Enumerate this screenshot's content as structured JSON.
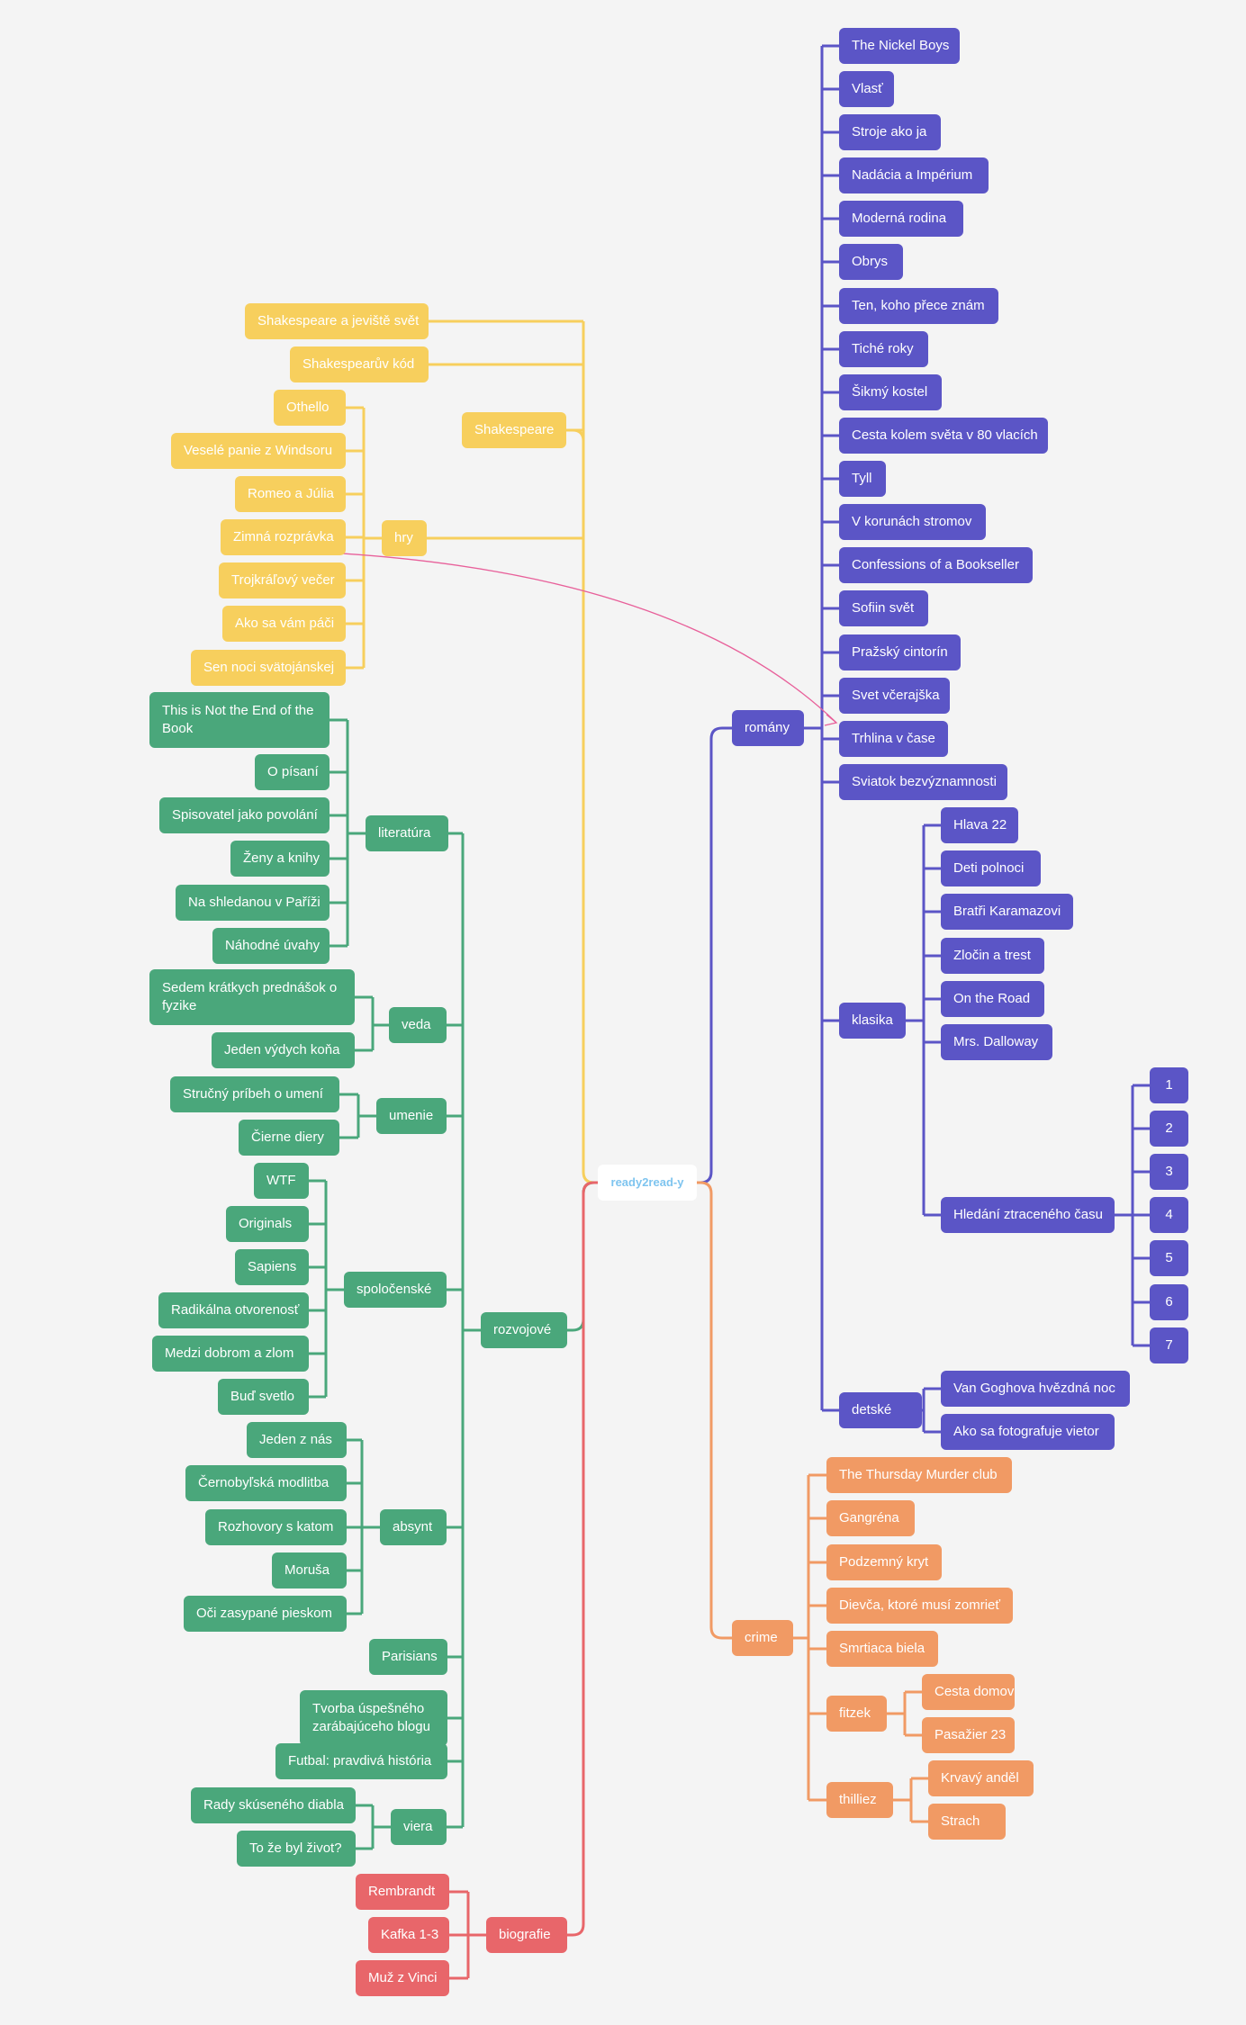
{
  "colors": {
    "yellow": "#f7cf5d",
    "green": "#4aa77b",
    "purple": "#5b55c6",
    "orange": "#f19a64",
    "red": "#e8666a",
    "root_text": "#7ec4ef",
    "arrow": "#e8609a"
  },
  "root": {
    "label": "ready2read-y"
  },
  "branches": [
    {
      "label": "Shakespeare",
      "color": "yellow",
      "children": [
        {
          "label": "Shakespeare a jeviště svět"
        },
        {
          "label": "Shakespearův kód"
        },
        {
          "label": "hry",
          "children": [
            {
              "label": "Othello"
            },
            {
              "label": "Veselé panie z Windsoru"
            },
            {
              "label": "Romeo a Júlia"
            },
            {
              "label": "Zimná rozprávka"
            },
            {
              "label": "Trojkráľový večer"
            },
            {
              "label": "Ako sa vám páči"
            },
            {
              "label": "Sen noci svätojánskej"
            }
          ]
        }
      ]
    },
    {
      "label": "rozvojové",
      "color": "green",
      "children": [
        {
          "label": "literatúra",
          "children": [
            {
              "label": "This is Not the End of the Book"
            },
            {
              "label": "O písaní"
            },
            {
              "label": "Spisovatel jako povolání"
            },
            {
              "label": "Ženy a knihy"
            },
            {
              "label": "Na shledanou v Paříži"
            },
            {
              "label": "Náhodné úvahy"
            }
          ]
        },
        {
          "label": "veda",
          "children": [
            {
              "label": "Sedem krátkych prednášok o fyzike"
            },
            {
              "label": "Jeden výdych koňa"
            }
          ]
        },
        {
          "label": "umenie",
          "children": [
            {
              "label": "Stručný príbeh o umení"
            },
            {
              "label": "Čierne diery"
            }
          ]
        },
        {
          "label": "spoločenské",
          "children": [
            {
              "label": "WTF"
            },
            {
              "label": "Originals"
            },
            {
              "label": "Sapiens"
            },
            {
              "label": "Radikálna otvorenosť"
            },
            {
              "label": "Medzi dobrom a zlom"
            },
            {
              "label": "Buď svetlo"
            }
          ]
        },
        {
          "label": "absynt",
          "children": [
            {
              "label": "Jeden z nás"
            },
            {
              "label": "Černobyľská modlitba"
            },
            {
              "label": "Rozhovory s katom"
            },
            {
              "label": "Moruša"
            },
            {
              "label": "Oči zasypané pieskom"
            }
          ]
        },
        {
          "label": "Parisians"
        },
        {
          "label": "Tvorba úspešného zarábajúceho blogu"
        },
        {
          "label": "Futbal: pravdivá história"
        },
        {
          "label": "viera",
          "children": [
            {
              "label": "Rady skúseného diabla"
            },
            {
              "label": "To že byl život?"
            }
          ]
        }
      ]
    },
    {
      "label": "biografie",
      "color": "red",
      "children": [
        {
          "label": "Rembrandt"
        },
        {
          "label": "Kafka 1-3"
        },
        {
          "label": "Muž z Vinci"
        }
      ]
    },
    {
      "label": "romány",
      "color": "purple",
      "children": [
        {
          "label": "The Nickel Boys"
        },
        {
          "label": "Vlasť"
        },
        {
          "label": "Stroje ako ja"
        },
        {
          "label": "Nadácia a Impérium"
        },
        {
          "label": "Moderná rodina"
        },
        {
          "label": "Obrys"
        },
        {
          "label": "Ten, koho přece znám"
        },
        {
          "label": "Tiché roky"
        },
        {
          "label": "Šikmý kostel"
        },
        {
          "label": "Cesta kolem světa v 80 vlacích"
        },
        {
          "label": "Tyll"
        },
        {
          "label": "V korunách stromov"
        },
        {
          "label": "Confessions of a Bookseller"
        },
        {
          "label": "Sofiin svět"
        },
        {
          "label": "Pražský cintorín"
        },
        {
          "label": "Svet včerajška"
        },
        {
          "label": "Trhlina v čase"
        },
        {
          "label": "Sviatok bezvýznamnosti"
        },
        {
          "label": "klasika",
          "children": [
            {
              "label": "Hlava 22"
            },
            {
              "label": "Deti polnoci"
            },
            {
              "label": "Bratři Karamazovi"
            },
            {
              "label": "Zločin a trest"
            },
            {
              "label": "On the Road"
            },
            {
              "label": "Mrs. Dalloway"
            },
            {
              "label": "Hledání ztraceného času",
              "children": [
                {
                  "label": "1"
                },
                {
                  "label": "2"
                },
                {
                  "label": "3"
                },
                {
                  "label": "4"
                },
                {
                  "label": "5"
                },
                {
                  "label": "6"
                },
                {
                  "label": "7"
                }
              ]
            }
          ]
        },
        {
          "label": "detské",
          "children": [
            {
              "label": "Van Goghova hvězdná noc"
            },
            {
              "label": "Ako sa fotografuje vietor"
            }
          ]
        }
      ]
    },
    {
      "label": "crime",
      "color": "orange",
      "children": [
        {
          "label": "The Thursday Murder club"
        },
        {
          "label": "Gangréna"
        },
        {
          "label": "Podzemný kryt"
        },
        {
          "label": "Dievča, ktoré musí zomrieť"
        },
        {
          "label": "Smrtiaca biela"
        },
        {
          "label": "fitzek",
          "children": [
            {
              "label": "Cesta domov"
            },
            {
              "label": "Pasažier 23"
            }
          ]
        },
        {
          "label": "thilliez",
          "children": [
            {
              "label": "Krvavý anděl"
            },
            {
              "label": "Strach"
            }
          ]
        }
      ]
    }
  ]
}
